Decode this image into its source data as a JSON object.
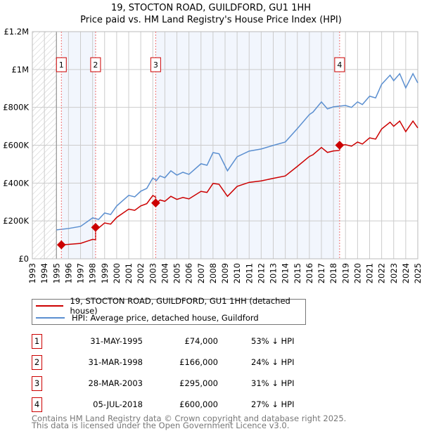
{
  "chart_data": {
    "type": "line",
    "title": "19, STOCTON ROAD, GUILDFORD, GU1 1HH",
    "subtitle": "Price paid vs. HM Land Registry's House Price Index (HPI)",
    "xlim": [
      1993,
      2025
    ],
    "ylim": [
      0,
      1200000
    ],
    "y_ticks": [
      {
        "v": 0,
        "label": "£0"
      },
      {
        "v": 200000,
        "label": "£200K"
      },
      {
        "v": 400000,
        "label": "£400K"
      },
      {
        "v": 600000,
        "label": "£600K"
      },
      {
        "v": 800000,
        "label": "£800K"
      },
      {
        "v": 1000000,
        "label": "£1M"
      },
      {
        "v": 1200000,
        "label": "£1.2M"
      }
    ],
    "x_ticks": [
      "1993",
      "1994",
      "1995",
      "1996",
      "1997",
      "1998",
      "1999",
      "2000",
      "2001",
      "2002",
      "2003",
      "2004",
      "2005",
      "2006",
      "2007",
      "2008",
      "2009",
      "2010",
      "2011",
      "2012",
      "2013",
      "2014",
      "2015",
      "2016",
      "2017",
      "2018",
      "2019",
      "2020",
      "2021",
      "2022",
      "2023",
      "2024",
      "2025"
    ],
    "grid": true,
    "hpi_series": {
      "name": "HPI: Average price, detached house, Guildford",
      "color": "#5b8fd0",
      "x": [
        1995,
        1996,
        1997,
        1998,
        1998.5,
        1999,
        1999.5,
        2000,
        2001,
        2001.5,
        2002,
        2002.5,
        2003,
        2003.3,
        2003.6,
        2004,
        2004.5,
        2005,
        2005.5,
        2006,
        2007,
        2007.5,
        2008,
        2008.5,
        2009.2,
        2010,
        2011,
        2012,
        2013,
        2014,
        2015,
        2016,
        2016.3,
        2017,
        2017.5,
        2018,
        2019,
        2019.5,
        2020,
        2020.4,
        2021,
        2021.5,
        2022,
        2022.7,
        2023,
        2023.5,
        2024,
        2024.6,
        2025
      ],
      "y": [
        153000,
        160000,
        171000,
        216000,
        208000,
        242000,
        234000,
        279000,
        335000,
        327000,
        357000,
        372000,
        427000,
        413000,
        438000,
        428000,
        465000,
        442000,
        457000,
        446000,
        502000,
        494000,
        561000,
        555000,
        465000,
        539000,
        569000,
        580000,
        599000,
        617000,
        688000,
        762000,
        775000,
        829000,
        792000,
        803000,
        810000,
        800000,
        829000,
        815000,
        859000,
        850000,
        922000,
        970000,
        941000,
        978000,
        903000,
        978000,
        929000
      ]
    },
    "price_series": {
      "name": "19, STOCTON ROAD, GUILDFORD, GU1 1HH (detached house)",
      "color": "#cc0000"
    },
    "sales": [
      {
        "n": "1",
        "t": 1995.41,
        "date": "31-MAY-1995",
        "value": 74000,
        "price": "£74,000",
        "hpi": "53% ↓ HPI"
      },
      {
        "n": "2",
        "t": 1998.25,
        "date": "31-MAR-1998",
        "value": 166000,
        "price": "£166,000",
        "hpi": "24% ↓ HPI"
      },
      {
        "n": "3",
        "t": 2003.24,
        "date": "28-MAR-2003",
        "value": 295000,
        "price": "£295,000",
        "hpi": "31% ↓ HPI"
      },
      {
        "n": "4",
        "t": 2018.51,
        "date": "05-JUL-2018",
        "value": 600000,
        "price": "£600,000",
        "hpi": "27% ↓ HPI"
      }
    ],
    "legend_position": "below"
  },
  "footer": {
    "line1": "Contains HM Land Registry data © Crown copyright and database right 2025.",
    "line2": "This data is licensed under the Open Government Licence v3.0."
  }
}
